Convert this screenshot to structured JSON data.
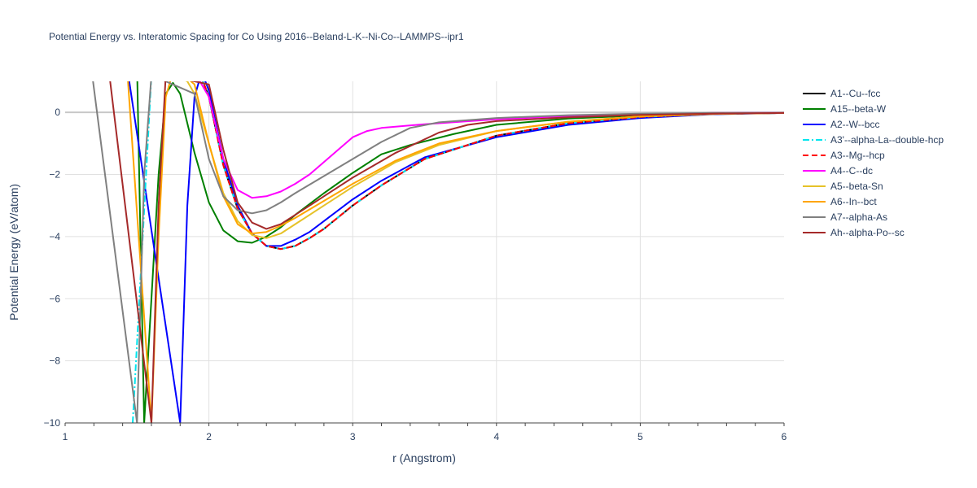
{
  "chart_data": {
    "type": "line",
    "title": "Potential Energy vs. Interatomic Spacing for Co Using 2016--Beland-L-K--Ni-Co--LAMMPS--ipr1",
    "xlabel": "r (Angstrom)",
    "ylabel": "Potential Energy (eV/atom)",
    "xlim": [
      1,
      6
    ],
    "ylim": [
      -10,
      1
    ],
    "xticks": [
      1,
      2,
      3,
      4,
      5,
      6
    ],
    "xtick_labels": [
      "1",
      "2",
      "3",
      "4",
      "5",
      "6"
    ],
    "yticks": [
      0,
      -2,
      -4,
      -6,
      -8,
      -10
    ],
    "ytick_labels": [
      "0",
      "−2",
      "−4",
      "−6",
      "−8",
      "−10"
    ],
    "grid": true,
    "legend_position": "right",
    "series": [
      {
        "name": "A1--Cu--fcc",
        "color": "#000000",
        "dash": "solid",
        "x": [
          1.45,
          1.6,
          1.7,
          1.8,
          1.9,
          1.95,
          2.0,
          2.1,
          2.2,
          2.3,
          2.4,
          2.5,
          2.6,
          2.7,
          2.8,
          3.0,
          3.2,
          3.5,
          4.0,
          4.5,
          5.0,
          5.5,
          6.0
        ],
        "y": [
          1.5,
          1.2,
          1.1,
          1.3,
          1.2,
          1.1,
          0.5,
          -1.7,
          -3.1,
          -3.9,
          -4.3,
          -4.4,
          -4.3,
          -4.05,
          -3.75,
          -3.0,
          -2.35,
          -1.5,
          -0.75,
          -0.35,
          -0.15,
          -0.05,
          -0.02
        ]
      },
      {
        "name": "A15--beta-W",
        "color": "#008000",
        "dash": "solid",
        "x": [
          1.5,
          1.55,
          1.6,
          1.65,
          1.7,
          1.75,
          1.8,
          1.9,
          2.0,
          2.1,
          2.2,
          2.3,
          2.4,
          2.5,
          2.6,
          2.8,
          3.0,
          3.2,
          3.4,
          3.7,
          4.0,
          4.5,
          5.0,
          5.5,
          6.0
        ],
        "y": [
          1.5,
          -10,
          -6,
          -2,
          0.6,
          0.95,
          0.6,
          -1.3,
          -2.9,
          -3.8,
          -4.15,
          -4.2,
          -4.0,
          -3.7,
          -3.3,
          -2.6,
          -1.95,
          -1.35,
          -1.05,
          -0.7,
          -0.4,
          -0.2,
          -0.1,
          -0.05,
          -0.02
        ]
      },
      {
        "name": "A2--W--bcc",
        "color": "#0000ff",
        "dash": "solid",
        "x": [
          1.43,
          1.8,
          1.85,
          1.9,
          1.95,
          2.0,
          2.1,
          2.2,
          2.3,
          2.4,
          2.5,
          2.6,
          2.7,
          2.8,
          3.0,
          3.2,
          3.5,
          4.0,
          4.5,
          5.0,
          5.5,
          6.0
        ],
        "y": [
          1.5,
          -10,
          -3.0,
          0.5,
          1.3,
          0.7,
          -1.5,
          -3.0,
          -3.9,
          -4.3,
          -4.3,
          -4.1,
          -3.85,
          -3.5,
          -2.8,
          -2.2,
          -1.45,
          -0.8,
          -0.4,
          -0.18,
          -0.06,
          -0.02
        ]
      },
      {
        "name": "A3'--alpha-La--double-hcp",
        "color": "#00e5ee",
        "dash": "dashdot",
        "x": [
          1.47,
          1.6,
          1.7,
          1.8,
          1.9,
          1.95,
          2.0,
          2.1,
          2.2,
          2.3,
          2.4,
          2.5,
          2.6,
          2.7,
          2.8,
          3.0,
          3.2,
          3.5,
          4.0,
          4.5,
          5.0,
          5.5,
          6.0
        ],
        "y": [
          -10,
          1.2,
          1.1,
          1.3,
          1.2,
          1.1,
          0.5,
          -1.7,
          -3.1,
          -3.9,
          -4.3,
          -4.4,
          -4.3,
          -4.05,
          -3.75,
          -3.0,
          -2.35,
          -1.5,
          -0.75,
          -0.35,
          -0.15,
          -0.05,
          -0.02
        ]
      },
      {
        "name": "A3--Mg--hcp",
        "color": "#ff0000",
        "dash": "dash",
        "x": [
          1.47,
          1.6,
          1.7,
          1.8,
          1.9,
          1.95,
          2.0,
          2.1,
          2.2,
          2.3,
          2.4,
          2.5,
          2.6,
          2.7,
          2.8,
          3.0,
          3.2,
          3.5,
          4.0,
          4.5,
          5.0,
          5.5,
          6.0
        ],
        "y": [
          1.5,
          1.2,
          1.1,
          1.3,
          1.2,
          1.1,
          0.5,
          -1.7,
          -3.1,
          -3.9,
          -4.3,
          -4.4,
          -4.3,
          -4.05,
          -3.75,
          -3.0,
          -2.35,
          -1.5,
          -0.75,
          -0.35,
          -0.15,
          -0.05,
          -0.02
        ]
      },
      {
        "name": "A4--C--dc",
        "color": "#ff00ff",
        "dash": "solid",
        "x": [
          1.12,
          1.9,
          2.0,
          2.1,
          2.2,
          2.3,
          2.4,
          2.5,
          2.6,
          2.7,
          2.8,
          2.9,
          3.0,
          3.1,
          3.2,
          3.5,
          4.0,
          4.5,
          5.0,
          5.5,
          6.0
        ],
        "y": [
          1.5,
          1.3,
          0.5,
          -1.5,
          -2.5,
          -2.75,
          -2.7,
          -2.55,
          -2.3,
          -2.0,
          -1.6,
          -1.2,
          -0.8,
          -0.6,
          -0.5,
          -0.38,
          -0.22,
          -0.12,
          -0.06,
          -0.02,
          -0.01
        ]
      },
      {
        "name": "A5--beta-Sn",
        "color": "#e6c229",
        "dash": "solid",
        "x": [
          1.43,
          1.7,
          1.8,
          1.85,
          1.9,
          2.0,
          2.1,
          2.2,
          2.3,
          2.4,
          2.5,
          2.6,
          2.8,
          3.0,
          3.3,
          3.6,
          4.0,
          4.5,
          5.0,
          5.5,
          6.0
        ],
        "y": [
          1.5,
          1.3,
          1.1,
          1.0,
          0.6,
          -1.0,
          -2.6,
          -3.5,
          -3.95,
          -4.05,
          -3.9,
          -3.6,
          -3.0,
          -2.4,
          -1.6,
          -1.05,
          -0.6,
          -0.3,
          -0.13,
          -0.05,
          -0.02
        ]
      },
      {
        "name": "A6--In--bct",
        "color": "#ffa500",
        "dash": "solid",
        "x": [
          1.43,
          1.6,
          1.65,
          1.7,
          1.75,
          1.8,
          1.85,
          1.9,
          2.0,
          2.1,
          2.2,
          2.3,
          2.4,
          2.5,
          2.6,
          2.8,
          3.0,
          3.3,
          3.6,
          4.0,
          4.5,
          5.0,
          5.5,
          6.0
        ],
        "y": [
          1.5,
          -10,
          -4,
          0.5,
          1.3,
          1.2,
          1.1,
          0.9,
          -1.0,
          -2.7,
          -3.6,
          -3.9,
          -3.85,
          -3.65,
          -3.4,
          -2.85,
          -2.3,
          -1.55,
          -1.0,
          -0.6,
          -0.3,
          -0.13,
          -0.05,
          -0.02
        ]
      },
      {
        "name": "A7--alpha-As",
        "color": "#808080",
        "dash": "solid",
        "x": [
          1.18,
          1.5,
          1.55,
          1.6,
          1.9,
          2.0,
          2.1,
          2.2,
          2.3,
          2.4,
          2.5,
          2.6,
          2.8,
          3.0,
          3.2,
          3.4,
          3.6,
          4.0,
          4.5,
          5.0,
          5.5,
          6.0
        ],
        "y": [
          1.5,
          -10,
          -2,
          1.2,
          0.6,
          -1.5,
          -2.7,
          -3.15,
          -3.25,
          -3.15,
          -2.9,
          -2.6,
          -2.05,
          -1.5,
          -0.95,
          -0.5,
          -0.32,
          -0.18,
          -0.09,
          -0.04,
          -0.02,
          -0.01
        ]
      },
      {
        "name": "Ah--alpha-Po--sc",
        "color": "#a52a2a",
        "dash": "solid",
        "x": [
          1.3,
          1.6,
          1.65,
          1.7,
          1.8,
          1.9,
          2.0,
          2.1,
          2.2,
          2.3,
          2.4,
          2.5,
          2.6,
          2.8,
          3.0,
          3.3,
          3.6,
          3.8,
          4.0,
          4.5,
          5.0,
          5.5,
          6.0
        ],
        "y": [
          1.5,
          -10,
          -3,
          1.2,
          1.1,
          1.0,
          0.9,
          -1.2,
          -2.9,
          -3.55,
          -3.75,
          -3.6,
          -3.3,
          -2.7,
          -2.1,
          -1.3,
          -0.65,
          -0.4,
          -0.28,
          -0.16,
          -0.08,
          -0.04,
          -0.02
        ]
      }
    ]
  }
}
